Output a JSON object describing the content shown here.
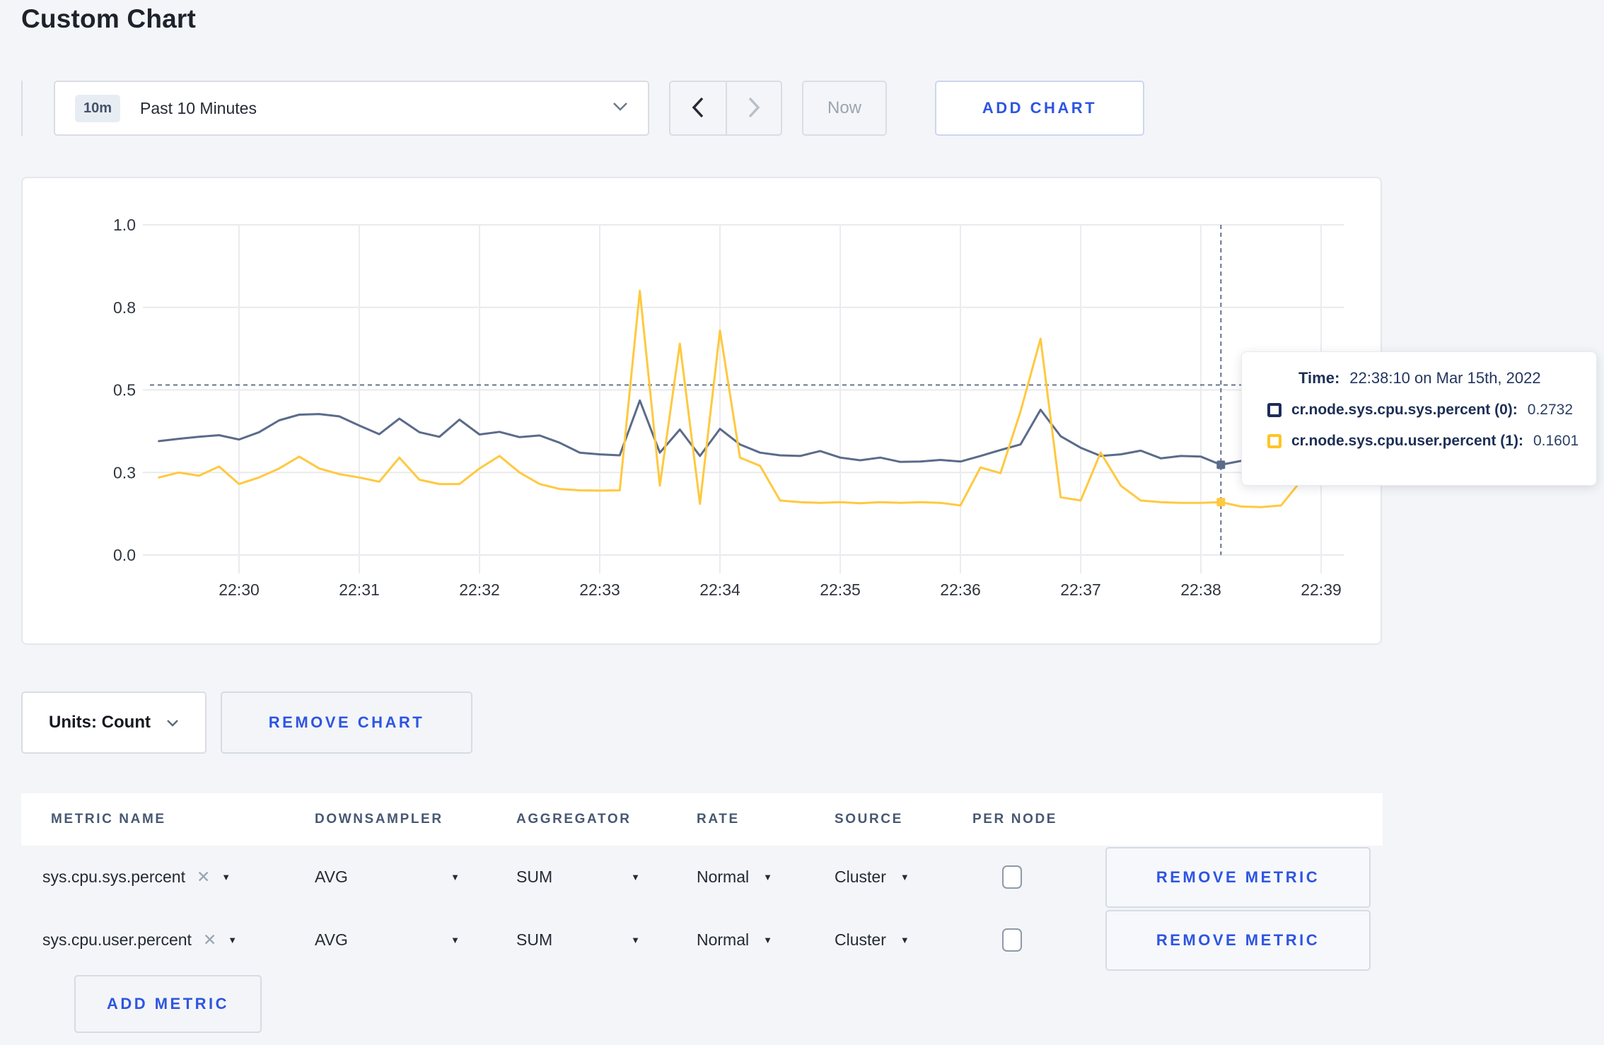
{
  "page": {
    "title": "Custom Chart"
  },
  "toolbar": {
    "range_badge": "10m",
    "range_label": "Past 10 Minutes",
    "now_label": "Now",
    "add_chart_label": "ADD CHART"
  },
  "chart_controls": {
    "units_label": "Units: Count",
    "remove_chart_label": "REMOVE CHART"
  },
  "tooltip": {
    "time_label": "Time:",
    "time_value": "22:38:10 on Mar 15th, 2022",
    "series": [
      {
        "name": "cr.node.sys.cpu.sys.percent (0):",
        "value": "0.2732",
        "swatch": "#1c2d59"
      },
      {
        "name": "cr.node.sys.cpu.user.percent (1):",
        "value": "0.1601",
        "swatch": "#ffc425"
      }
    ]
  },
  "metrics_table": {
    "headers": [
      "METRIC NAME",
      "DOWNSAMPLER",
      "AGGREGATOR",
      "RATE",
      "SOURCE",
      "PER NODE"
    ],
    "rows": [
      {
        "metric": "sys.cpu.sys.percent",
        "downsampler": "AVG",
        "aggregator": "SUM",
        "rate": "Normal",
        "source": "Cluster",
        "per_node_checked": false,
        "remove_label": "REMOVE METRIC"
      },
      {
        "metric": "sys.cpu.user.percent",
        "downsampler": "AVG",
        "aggregator": "SUM",
        "rate": "Normal",
        "source": "Cluster",
        "per_node_checked": false,
        "remove_label": "REMOVE METRIC"
      }
    ],
    "add_metric_label": "ADD METRIC"
  },
  "icons": {
    "caret_down": "▼",
    "clear": "✕"
  },
  "chart_data": {
    "type": "line",
    "title": "",
    "ylim": [
      0,
      1
    ],
    "grid": true,
    "legend_position": "tooltip",
    "y_ticks": [
      {
        "value": 1.0,
        "label": "1.0"
      },
      {
        "value": 0.75,
        "label": "0.8"
      },
      {
        "value": 0.5,
        "label": "0.5"
      },
      {
        "value": 0.25,
        "label": "0.3"
      },
      {
        "value": 0.0,
        "label": "0.0"
      }
    ],
    "x_ticks": [
      "22:30",
      "22:31",
      "22:32",
      "22:33",
      "22:34",
      "22:35",
      "22:36",
      "22:37",
      "22:38",
      "22:39"
    ],
    "sample_interval_seconds": 10,
    "start_offset_seconds": -40,
    "series": [
      {
        "name": "cr.node.sys.cpu.sys.percent (0)",
        "color": "#5b6b8a",
        "values": [
          0.345,
          0.352,
          0.358,
          0.363,
          0.35,
          0.372,
          0.408,
          0.425,
          0.427,
          0.42,
          0.392,
          0.366,
          0.413,
          0.372,
          0.358,
          0.41,
          0.365,
          0.373,
          0.357,
          0.362,
          0.34,
          0.31,
          0.305,
          0.302,
          0.468,
          0.31,
          0.38,
          0.3,
          0.382,
          0.335,
          0.31,
          0.302,
          0.3,
          0.315,
          0.295,
          0.287,
          0.295,
          0.282,
          0.283,
          0.288,
          0.283,
          0.3,
          0.318,
          0.335,
          0.44,
          0.36,
          0.325,
          0.3,
          0.305,
          0.316,
          0.293,
          0.3,
          0.298,
          0.2732,
          0.285,
          0.29,
          0.295,
          0.3,
          0.305,
          0.31
        ]
      },
      {
        "name": "cr.node.sys.cpu.user.percent (1)",
        "color": "#ffc93f",
        "values": [
          0.235,
          0.25,
          0.24,
          0.268,
          0.215,
          0.235,
          0.262,
          0.298,
          0.262,
          0.245,
          0.235,
          0.222,
          0.295,
          0.228,
          0.215,
          0.215,
          0.262,
          0.3,
          0.25,
          0.215,
          0.2,
          0.196,
          0.195,
          0.196,
          0.8,
          0.21,
          0.64,
          0.155,
          0.68,
          0.295,
          0.27,
          0.165,
          0.16,
          0.158,
          0.16,
          0.157,
          0.16,
          0.158,
          0.16,
          0.158,
          0.15,
          0.265,
          0.248,
          0.435,
          0.655,
          0.175,
          0.165,
          0.31,
          0.21,
          0.165,
          0.16,
          0.158,
          0.158,
          0.1601,
          0.147,
          0.145,
          0.15,
          0.225,
          0.285,
          0.22
        ]
      }
    ],
    "crosshair": {
      "time": "22:38:10",
      "x_offset_seconds": 490,
      "y_value": 0.515,
      "dots": [
        {
          "series": 0,
          "value": 0.2732
        },
        {
          "series": 1,
          "value": 0.1601
        }
      ]
    }
  }
}
